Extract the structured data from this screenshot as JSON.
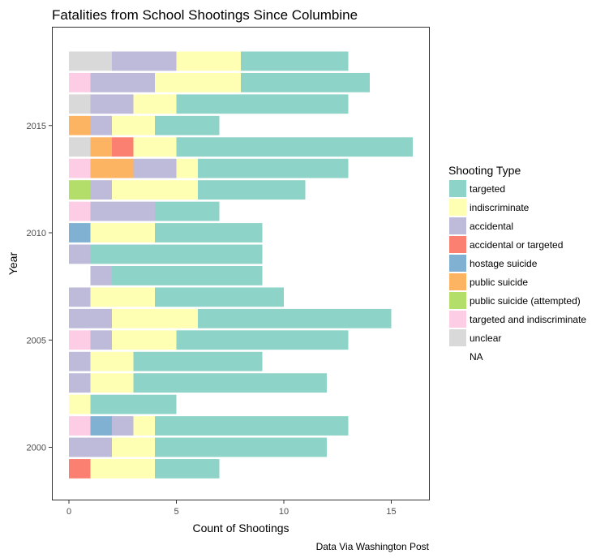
{
  "chart_data": {
    "type": "bar",
    "orientation": "horizontal",
    "stacked": true,
    "title": "Fatalities from School Shootings Since Columbine",
    "xlabel": "Count of Shootings",
    "ylabel": "Year",
    "caption": "Data Via Washington Post",
    "xlim": [
      0,
      16.5
    ],
    "ylim": [
      1998.3,
      2018.7
    ],
    "x_ticks": [
      0,
      5,
      10,
      15
    ],
    "y_ticks": [
      2000,
      2005,
      2010,
      2015
    ],
    "grid": false,
    "legend": {
      "title": "Shooting Type",
      "placement": "right",
      "entries": [
        {
          "key": "unclear",
          "label": "unclear",
          "color": "#d9d9d9"
        },
        {
          "key": "accidental",
          "label": "accidental",
          "color": "#bebada"
        },
        {
          "key": "indiscriminate",
          "label": "indiscriminate",
          "color": "#ffffb3"
        },
        {
          "key": "targeted",
          "label": "targeted",
          "color": "#8dd3c7"
        },
        {
          "key": "targeted_and_indiscriminate",
          "label": "targeted and indiscriminate",
          "color": "#fccde5"
        },
        {
          "key": "public_suicide",
          "label": "public suicide",
          "color": "#fdb462"
        },
        {
          "key": "accidental_or_targeted",
          "label": "accidental or targeted",
          "color": "#fb8072"
        },
        {
          "key": "public_suicide_attempted",
          "label": "public suicide (attempted)",
          "color": "#b3de69"
        },
        {
          "key": "hostage_suicide",
          "label": "hostage suicide",
          "color": "#80b1d3"
        },
        {
          "key": "na",
          "label": "NA",
          "color": "none"
        }
      ],
      "order": [
        "targeted",
        "indiscriminate",
        "accidental",
        "accidental_or_targeted",
        "hostage_suicide",
        "public_suicide",
        "public_suicide_attempted",
        "targeted_and_indiscriminate",
        "unclear",
        "na"
      ]
    },
    "bars": [
      {
        "year": 2018,
        "segments": [
          [
            "unclear",
            2
          ],
          [
            "accidental",
            3
          ],
          [
            "indiscriminate",
            3
          ],
          [
            "targeted",
            5
          ]
        ]
      },
      {
        "year": 2017,
        "segments": [
          [
            "targeted_and_indiscriminate",
            1
          ],
          [
            "accidental",
            3
          ],
          [
            "indiscriminate",
            4
          ],
          [
            "targeted",
            6
          ]
        ]
      },
      {
        "year": 2016,
        "segments": [
          [
            "unclear",
            1
          ],
          [
            "accidental",
            2
          ],
          [
            "indiscriminate",
            2
          ],
          [
            "targeted",
            8
          ]
        ]
      },
      {
        "year": 2015,
        "segments": [
          [
            "public_suicide",
            1
          ],
          [
            "accidental",
            1
          ],
          [
            "indiscriminate",
            2
          ],
          [
            "targeted",
            3
          ]
        ]
      },
      {
        "year": 2014,
        "segments": [
          [
            "unclear",
            1
          ],
          [
            "public_suicide",
            1
          ],
          [
            "accidental_or_targeted",
            1
          ],
          [
            "indiscriminate",
            2
          ],
          [
            "targeted",
            11
          ]
        ]
      },
      {
        "year": 2013,
        "segments": [
          [
            "targeted_and_indiscriminate",
            1
          ],
          [
            "public_suicide",
            2
          ],
          [
            "accidental",
            2
          ],
          [
            "indiscriminate",
            1
          ],
          [
            "targeted",
            7
          ]
        ]
      },
      {
        "year": 2012,
        "segments": [
          [
            "public_suicide_attempted",
            1
          ],
          [
            "accidental",
            1
          ],
          [
            "indiscriminate",
            4
          ],
          [
            "targeted",
            5
          ]
        ]
      },
      {
        "year": 2011,
        "segments": [
          [
            "targeted_and_indiscriminate",
            1
          ],
          [
            "accidental",
            3
          ],
          [
            "targeted",
            3
          ]
        ]
      },
      {
        "year": 2010,
        "segments": [
          [
            "hostage_suicide",
            1
          ],
          [
            "indiscriminate",
            3
          ],
          [
            "targeted",
            5
          ]
        ]
      },
      {
        "year": 2009,
        "segments": [
          [
            "accidental",
            1
          ],
          [
            "targeted",
            8
          ]
        ]
      },
      {
        "year": 2008,
        "segments": [
          [
            "na",
            1
          ],
          [
            "accidental",
            1
          ],
          [
            "targeted",
            7
          ]
        ]
      },
      {
        "year": 2007,
        "segments": [
          [
            "accidental",
            1
          ],
          [
            "indiscriminate",
            3
          ],
          [
            "targeted",
            6
          ]
        ]
      },
      {
        "year": 2006,
        "segments": [
          [
            "accidental",
            2
          ],
          [
            "indiscriminate",
            4
          ],
          [
            "targeted",
            9
          ]
        ]
      },
      {
        "year": 2005,
        "segments": [
          [
            "targeted_and_indiscriminate",
            1
          ],
          [
            "accidental",
            1
          ],
          [
            "indiscriminate",
            3
          ],
          [
            "targeted",
            8
          ]
        ]
      },
      {
        "year": 2004,
        "segments": [
          [
            "accidental",
            1
          ],
          [
            "indiscriminate",
            2
          ],
          [
            "targeted",
            6
          ]
        ]
      },
      {
        "year": 2003,
        "segments": [
          [
            "accidental",
            1
          ],
          [
            "indiscriminate",
            2
          ],
          [
            "targeted",
            9
          ]
        ]
      },
      {
        "year": 2002,
        "segments": [
          [
            "indiscriminate",
            1
          ],
          [
            "targeted",
            4
          ]
        ]
      },
      {
        "year": 2001,
        "segments": [
          [
            "targeted_and_indiscriminate",
            1
          ],
          [
            "hostage_suicide",
            1
          ],
          [
            "accidental",
            1
          ],
          [
            "indiscriminate",
            1
          ],
          [
            "targeted",
            9
          ]
        ]
      },
      {
        "year": 2000,
        "segments": [
          [
            "accidental",
            2
          ],
          [
            "indiscriminate",
            2
          ],
          [
            "targeted",
            8
          ]
        ]
      },
      {
        "year": 1999,
        "segments": [
          [
            "accidental_or_targeted",
            1
          ],
          [
            "indiscriminate",
            3
          ],
          [
            "targeted",
            3
          ]
        ]
      }
    ]
  }
}
